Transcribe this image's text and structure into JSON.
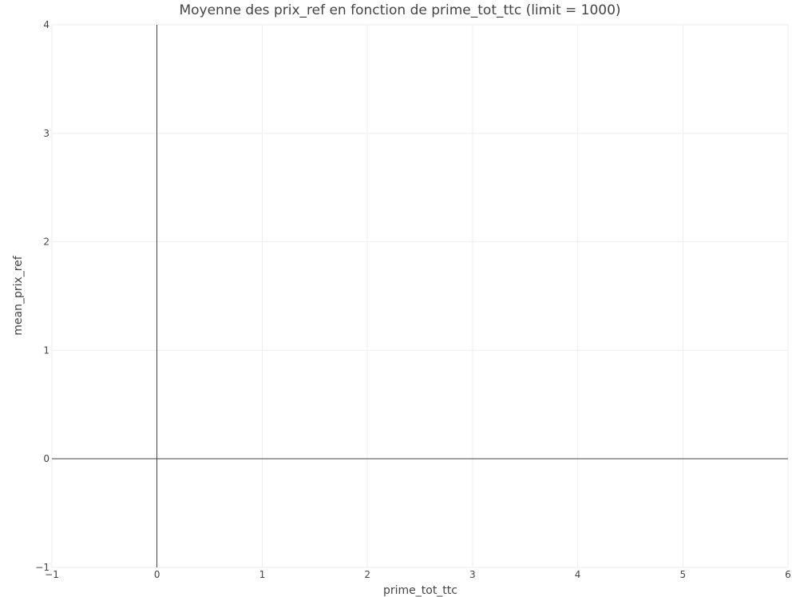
{
  "chart_data": {
    "type": "scatter",
    "title": "Moyenne des prix_ref en fonction de prime_tot_ttc (limit = 1000)",
    "xlabel": "prime_tot_ttc",
    "ylabel": "mean_prix_ref",
    "xlim": [
      -1,
      6
    ],
    "ylim": [
      -1,
      4
    ],
    "x_ticks": [
      -1,
      0,
      1,
      2,
      3,
      4,
      5,
      6
    ],
    "x_tick_labels": [
      "−1",
      "0",
      "1",
      "2",
      "3",
      "4",
      "5",
      "6"
    ],
    "y_ticks": [
      -1,
      0,
      1,
      2,
      3,
      4
    ],
    "y_tick_labels": [
      "−1",
      "0",
      "1",
      "2",
      "3",
      "4"
    ],
    "grid": true,
    "zero_lines": true,
    "series": [],
    "colors": {
      "grid": "#eeeeee",
      "zeroline": "#444444",
      "text": "#444444"
    }
  }
}
